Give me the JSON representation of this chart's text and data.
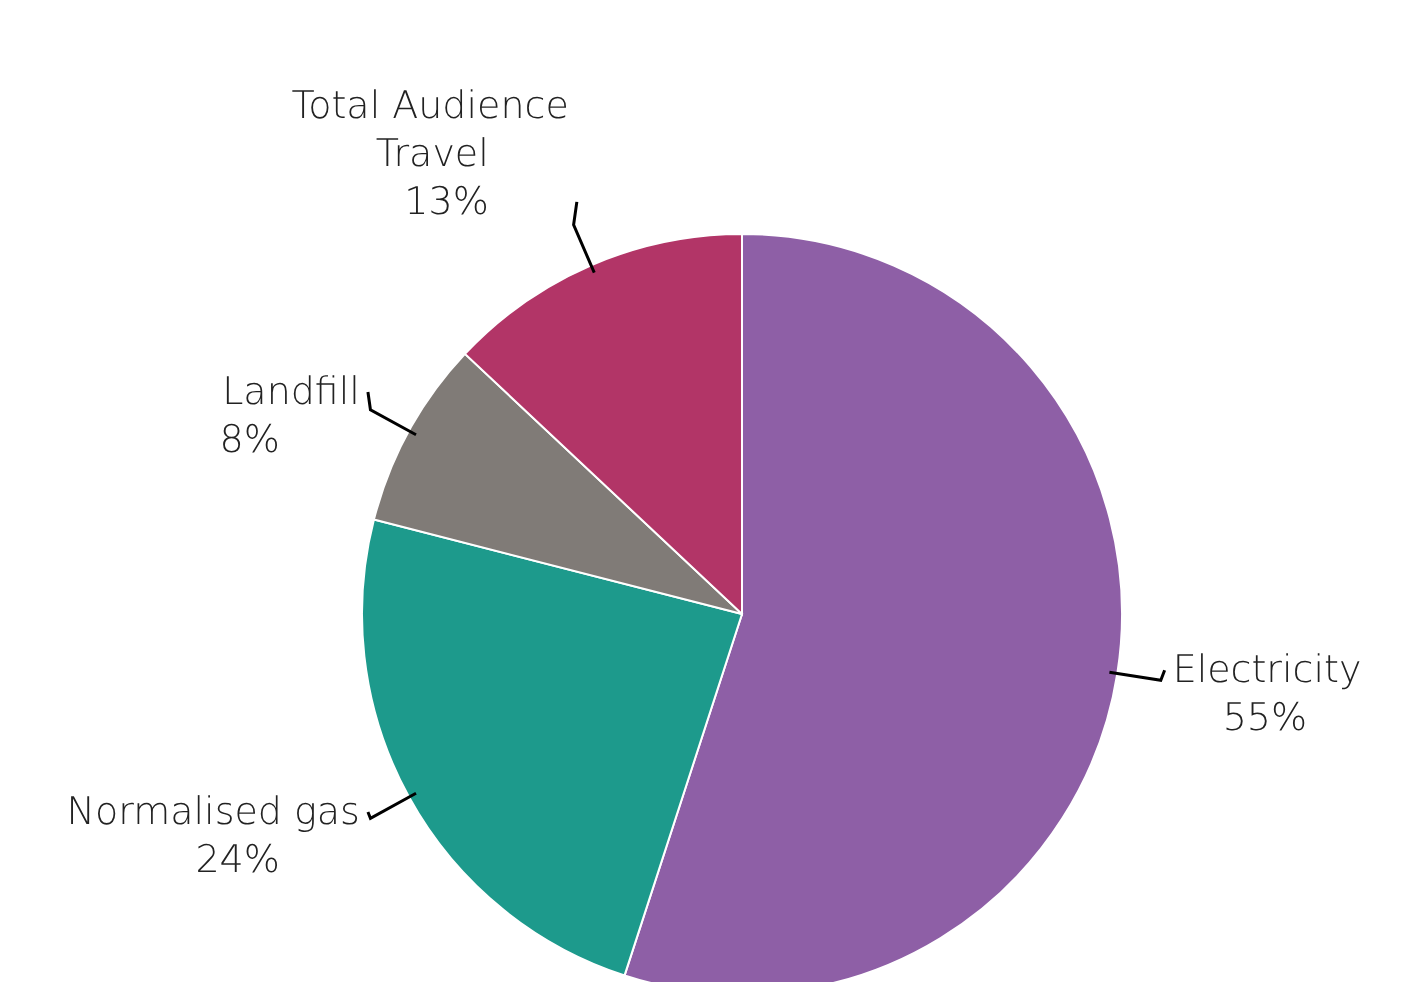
{
  "chart_data": {
    "type": "pie",
    "categories": [
      "Electricity",
      "Normalised gas",
      "Landfill",
      "Total Audience Travel"
    ],
    "values": [
      55,
      24,
      8,
      13
    ],
    "value_labels": [
      "55%",
      "24%",
      "8%",
      "13%"
    ],
    "colors": [
      "#8e5fa6",
      "#1d9a8c",
      "#807b77",
      "#b23567"
    ],
    "legend": false
  }
}
